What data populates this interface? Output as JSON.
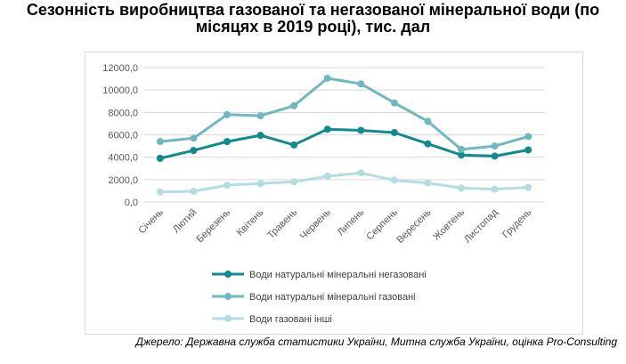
{
  "title": "Сезонність виробництва газованої та негазованої мінеральної води (по місяцях в 2019 році), тис. дал",
  "source": "Джерело: Державна служба статистики України, Митна служба України, оцінка Pro-Consulting",
  "chart_data": {
    "type": "line",
    "categories": [
      "Січень",
      "Лютий",
      "Березень",
      "Квітень",
      "Травень",
      "Червень",
      "Липень",
      "Серпень",
      "Вересень",
      "Жовтень",
      "Листопад",
      "Грудень"
    ],
    "y_ticks": [
      "0,0",
      "2000,0",
      "4000,0",
      "6000,0",
      "8000,0",
      "10000,0",
      "12000,0"
    ],
    "ylim": [
      0,
      12000
    ],
    "grid": true,
    "legend_position": "bottom",
    "series": [
      {
        "name": "Води натуральні мінеральні негазовані",
        "color": "#0f8b8d",
        "values": [
          3900,
          4600,
          5400,
          5950,
          5100,
          6500,
          6400,
          6200,
          5200,
          4200,
          4100,
          4650
        ]
      },
      {
        "name": "Води натуральні мінеральні газовані",
        "color": "#6fb8c0",
        "values": [
          5400,
          5700,
          7800,
          7700,
          8600,
          11050,
          10550,
          8850,
          7200,
          4700,
          5000,
          5850
        ]
      },
      {
        "name": "Води газовані інші",
        "color": "#b3dde0",
        "values": [
          900,
          950,
          1500,
          1650,
          1800,
          2300,
          2600,
          1950,
          1700,
          1250,
          1150,
          1300
        ]
      }
    ]
  }
}
